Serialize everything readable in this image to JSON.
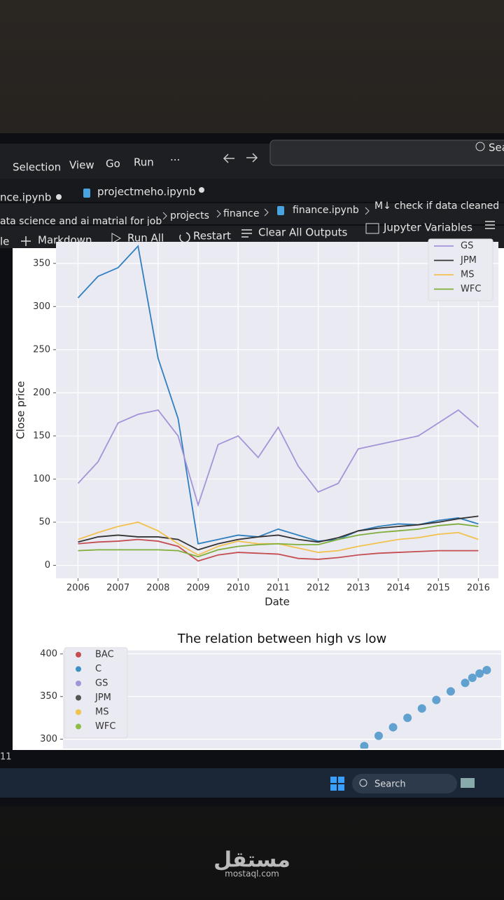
{
  "window": {
    "menu": [
      "Selection",
      "View",
      "Go",
      "Run",
      "···"
    ],
    "search": "Sea",
    "tabs": [
      "nce.ipynb",
      "projectmeho.ipynb"
    ],
    "breadcrumb": [
      "ata science and ai matrial for job",
      "projects",
      "finance",
      "finance.ipynb",
      "M↓ check if data cleaned"
    ],
    "toolbar": [
      "le",
      "Markdown",
      "Run All",
      "Restart",
      "Clear All Outputs",
      "Jupyter Variables"
    ],
    "cell_number": "11",
    "taskbar_search": "Search"
  },
  "watermark": {
    "logo": "مستقل",
    "site": "mostaql.com"
  },
  "chart_data": [
    {
      "type": "line",
      "x_label": "Date",
      "y_label": "Close price",
      "grid": true,
      "legend": "upper right",
      "x": [
        2006,
        2006.5,
        2007,
        2007.5,
        2008,
        2008.5,
        2009,
        2009.5,
        2010,
        2010.5,
        2011,
        2011.5,
        2012,
        2012.5,
        2013,
        2013.5,
        2014,
        2014.5,
        2015,
        2015.5,
        2016
      ],
      "xlim": [
        2005.45,
        2016.5
      ],
      "xticks": [
        2006,
        2007,
        2008,
        2009,
        2010,
        2011,
        2012,
        2013,
        2014,
        2015,
        2016
      ],
      "ylim": [
        -15,
        375
      ],
      "yticks": [
        0,
        50,
        100,
        150,
        200,
        250,
        300,
        350
      ],
      "series": [
        {
          "color": "#c44e52",
          "values": [
            25,
            27,
            28,
            30,
            28,
            22,
            5,
            12,
            15,
            14,
            13,
            8,
            7,
            9,
            12,
            14,
            15,
            16,
            17,
            17,
            17
          ]
        },
        {
          "color": "#2f7fbf",
          "values": [
            310,
            335,
            345,
            370,
            240,
            170,
            25,
            30,
            35,
            33,
            42,
            35,
            28,
            30,
            40,
            45,
            48,
            47,
            52,
            55,
            48
          ]
        },
        {
          "name": "GS",
          "color": "#a393d8",
          "values": [
            95,
            120,
            165,
            175,
            180,
            150,
            70,
            140,
            150,
            125,
            160,
            115,
            85,
            95,
            135,
            140,
            145,
            150,
            165,
            180,
            160
          ]
        },
        {
          "name": "JPM",
          "color": "#333333",
          "values": [
            27,
            33,
            35,
            33,
            33,
            30,
            18,
            25,
            30,
            33,
            35,
            30,
            27,
            32,
            40,
            43,
            45,
            47,
            50,
            54,
            57
          ]
        },
        {
          "name": "MS",
          "color": "#f2c14e",
          "values": [
            30,
            38,
            45,
            50,
            40,
            25,
            12,
            22,
            28,
            25,
            25,
            20,
            15,
            17,
            22,
            26,
            30,
            32,
            36,
            38,
            30
          ]
        },
        {
          "name": "WFC",
          "color": "#7fae3a",
          "values": [
            17,
            18,
            18,
            18,
            18,
            17,
            10,
            18,
            22,
            24,
            25,
            24,
            24,
            30,
            35,
            38,
            40,
            42,
            46,
            48,
            45
          ]
        }
      ]
    },
    {
      "type": "scatter",
      "title": "The relation between high  vs low",
      "grid": true,
      "legend": "upper left",
      "xlim": [
        91,
        395
      ],
      "ylim": [
        289,
        404
      ],
      "yticks": [
        300,
        350,
        400
      ],
      "series": [
        {
          "name": "BAC",
          "color": "#c44e52",
          "x": [],
          "values": []
        },
        {
          "name": "C",
          "color": "#3d8fc7",
          "x": [
            300,
            310,
            320,
            330,
            340,
            350,
            360,
            370,
            375,
            380,
            385
          ],
          "values": [
            292,
            304,
            314,
            325,
            336,
            346,
            356,
            366,
            372,
            377,
            381
          ]
        },
        {
          "name": "GS",
          "color": "#a393d8",
          "x": [],
          "values": []
        },
        {
          "name": "JPM",
          "color": "#555555",
          "x": [],
          "values": []
        },
        {
          "name": "MS",
          "color": "#f2c14e",
          "x": [],
          "values": []
        },
        {
          "name": "WFC",
          "color": "#8fbc45",
          "x": [],
          "values": []
        }
      ]
    }
  ]
}
